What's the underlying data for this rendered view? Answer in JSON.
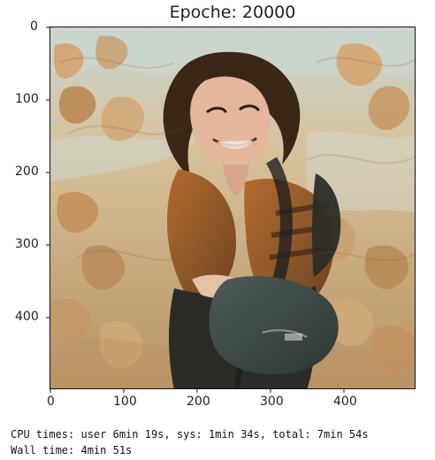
{
  "plot": {
    "title": "Epoche: 20000",
    "x_ticks": [
      "0",
      "100",
      "200",
      "300",
      "400"
    ],
    "y_ticks": [
      "0",
      "100",
      "200",
      "300",
      "400"
    ],
    "image_subject": "stylized-painting-woman-with-bag"
  },
  "colors": {
    "background": "#ffffff",
    "axis": "#111111",
    "text": "#222222",
    "sky": "#cbd6cf",
    "foliage": "#c99a5f",
    "shirt": "#9b5e26",
    "pants": "#2b2c27",
    "bag": "#3e4a48",
    "hair": "#3a2718",
    "skin": "#e4b79d"
  },
  "output": {
    "cpu_times": "CPU times: user 6min 19s, sys: 1min 34s, total: 7min 54s",
    "wall_time": "Wall time: 4min 51s"
  }
}
